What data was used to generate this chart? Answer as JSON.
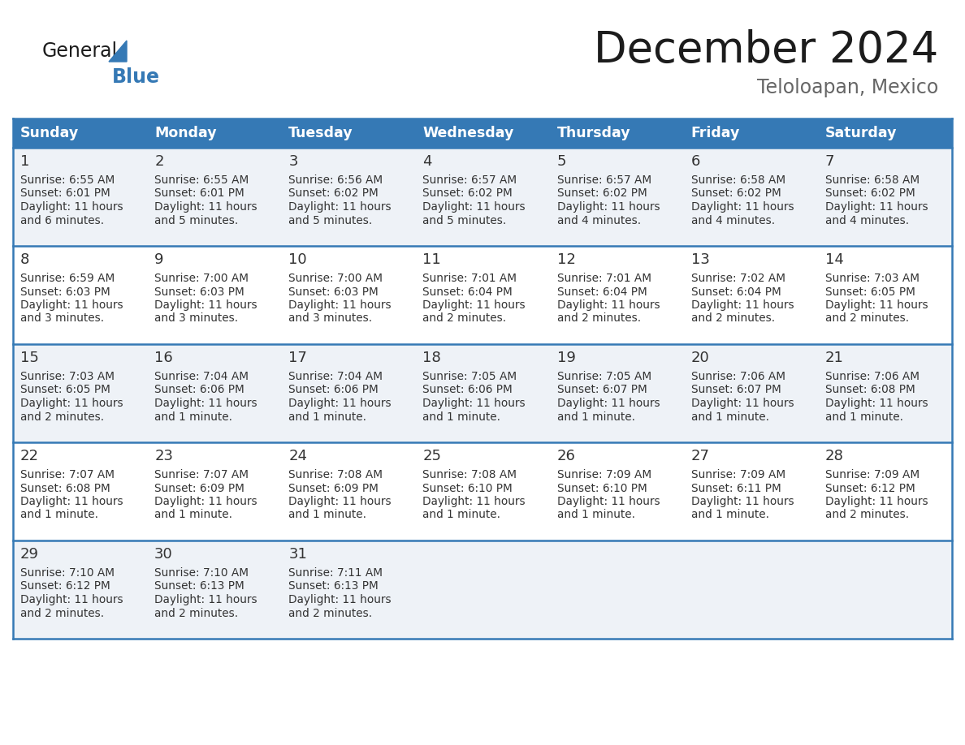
{
  "title": "December 2024",
  "subtitle": "Teloloapan, Mexico",
  "days_of_week": [
    "Sunday",
    "Monday",
    "Tuesday",
    "Wednesday",
    "Thursday",
    "Friday",
    "Saturday"
  ],
  "header_bg": "#3579b5",
  "header_text": "#ffffff",
  "row_bg_even": "#eef2f7",
  "row_bg_odd": "#ffffff",
  "cell_text": "#333333",
  "border_color": "#3579b5",
  "days": [
    {
      "day": 1,
      "col": 0,
      "row": 0,
      "sunrise": "6:55 AM",
      "sunset": "6:01 PM",
      "daylight": "11 hours and 6 minutes."
    },
    {
      "day": 2,
      "col": 1,
      "row": 0,
      "sunrise": "6:55 AM",
      "sunset": "6:01 PM",
      "daylight": "11 hours and 5 minutes."
    },
    {
      "day": 3,
      "col": 2,
      "row": 0,
      "sunrise": "6:56 AM",
      "sunset": "6:02 PM",
      "daylight": "11 hours and 5 minutes."
    },
    {
      "day": 4,
      "col": 3,
      "row": 0,
      "sunrise": "6:57 AM",
      "sunset": "6:02 PM",
      "daylight": "11 hours and 5 minutes."
    },
    {
      "day": 5,
      "col": 4,
      "row": 0,
      "sunrise": "6:57 AM",
      "sunset": "6:02 PM",
      "daylight": "11 hours and 4 minutes."
    },
    {
      "day": 6,
      "col": 5,
      "row": 0,
      "sunrise": "6:58 AM",
      "sunset": "6:02 PM",
      "daylight": "11 hours and 4 minutes."
    },
    {
      "day": 7,
      "col": 6,
      "row": 0,
      "sunrise": "6:58 AM",
      "sunset": "6:02 PM",
      "daylight": "11 hours and 4 minutes."
    },
    {
      "day": 8,
      "col": 0,
      "row": 1,
      "sunrise": "6:59 AM",
      "sunset": "6:03 PM",
      "daylight": "11 hours and 3 minutes."
    },
    {
      "day": 9,
      "col": 1,
      "row": 1,
      "sunrise": "7:00 AM",
      "sunset": "6:03 PM",
      "daylight": "11 hours and 3 minutes."
    },
    {
      "day": 10,
      "col": 2,
      "row": 1,
      "sunrise": "7:00 AM",
      "sunset": "6:03 PM",
      "daylight": "11 hours and 3 minutes."
    },
    {
      "day": 11,
      "col": 3,
      "row": 1,
      "sunrise": "7:01 AM",
      "sunset": "6:04 PM",
      "daylight": "11 hours and 2 minutes."
    },
    {
      "day": 12,
      "col": 4,
      "row": 1,
      "sunrise": "7:01 AM",
      "sunset": "6:04 PM",
      "daylight": "11 hours and 2 minutes."
    },
    {
      "day": 13,
      "col": 5,
      "row": 1,
      "sunrise": "7:02 AM",
      "sunset": "6:04 PM",
      "daylight": "11 hours and 2 minutes."
    },
    {
      "day": 14,
      "col": 6,
      "row": 1,
      "sunrise": "7:03 AM",
      "sunset": "6:05 PM",
      "daylight": "11 hours and 2 minutes."
    },
    {
      "day": 15,
      "col": 0,
      "row": 2,
      "sunrise": "7:03 AM",
      "sunset": "6:05 PM",
      "daylight": "11 hours and 2 minutes."
    },
    {
      "day": 16,
      "col": 1,
      "row": 2,
      "sunrise": "7:04 AM",
      "sunset": "6:06 PM",
      "daylight": "11 hours and 1 minute."
    },
    {
      "day": 17,
      "col": 2,
      "row": 2,
      "sunrise": "7:04 AM",
      "sunset": "6:06 PM",
      "daylight": "11 hours and 1 minute."
    },
    {
      "day": 18,
      "col": 3,
      "row": 2,
      "sunrise": "7:05 AM",
      "sunset": "6:06 PM",
      "daylight": "11 hours and 1 minute."
    },
    {
      "day": 19,
      "col": 4,
      "row": 2,
      "sunrise": "7:05 AM",
      "sunset": "6:07 PM",
      "daylight": "11 hours and 1 minute."
    },
    {
      "day": 20,
      "col": 5,
      "row": 2,
      "sunrise": "7:06 AM",
      "sunset": "6:07 PM",
      "daylight": "11 hours and 1 minute."
    },
    {
      "day": 21,
      "col": 6,
      "row": 2,
      "sunrise": "7:06 AM",
      "sunset": "6:08 PM",
      "daylight": "11 hours and 1 minute."
    },
    {
      "day": 22,
      "col": 0,
      "row": 3,
      "sunrise": "7:07 AM",
      "sunset": "6:08 PM",
      "daylight": "11 hours and 1 minute."
    },
    {
      "day": 23,
      "col": 1,
      "row": 3,
      "sunrise": "7:07 AM",
      "sunset": "6:09 PM",
      "daylight": "11 hours and 1 minute."
    },
    {
      "day": 24,
      "col": 2,
      "row": 3,
      "sunrise": "7:08 AM",
      "sunset": "6:09 PM",
      "daylight": "11 hours and 1 minute."
    },
    {
      "day": 25,
      "col": 3,
      "row": 3,
      "sunrise": "7:08 AM",
      "sunset": "6:10 PM",
      "daylight": "11 hours and 1 minute."
    },
    {
      "day": 26,
      "col": 4,
      "row": 3,
      "sunrise": "7:09 AM",
      "sunset": "6:10 PM",
      "daylight": "11 hours and 1 minute."
    },
    {
      "day": 27,
      "col": 5,
      "row": 3,
      "sunrise": "7:09 AM",
      "sunset": "6:11 PM",
      "daylight": "11 hours and 1 minute."
    },
    {
      "day": 28,
      "col": 6,
      "row": 3,
      "sunrise": "7:09 AM",
      "sunset": "6:12 PM",
      "daylight": "11 hours and 2 minutes."
    },
    {
      "day": 29,
      "col": 0,
      "row": 4,
      "sunrise": "7:10 AM",
      "sunset": "6:12 PM",
      "daylight": "11 hours and 2 minutes."
    },
    {
      "day": 30,
      "col": 1,
      "row": 4,
      "sunrise": "7:10 AM",
      "sunset": "6:13 PM",
      "daylight": "11 hours and 2 minutes."
    },
    {
      "day": 31,
      "col": 2,
      "row": 4,
      "sunrise": "7:11 AM",
      "sunset": "6:13 PM",
      "daylight": "11 hours and 2 minutes."
    }
  ]
}
